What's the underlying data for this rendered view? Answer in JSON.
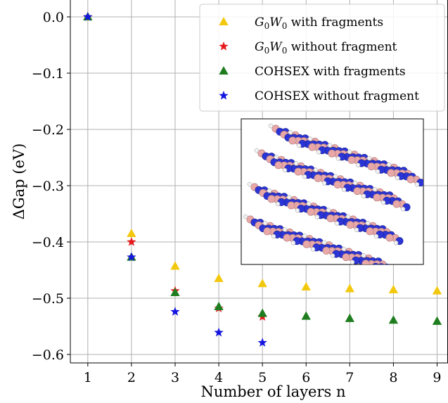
{
  "chart_data": {
    "type": "scatter",
    "xlabel": "Number of layers n",
    "ylabel": "ΔGap (eV)",
    "xlim": [
      0.6,
      9.25
    ],
    "ylim": [
      -0.615,
      0.03
    ],
    "x_ticks": [
      1,
      2,
      3,
      4,
      5,
      6,
      7,
      8,
      9
    ],
    "x_tick_labels": [
      "1",
      "2",
      "3",
      "4",
      "5",
      "6",
      "7",
      "8",
      "9"
    ],
    "y_ticks": [
      0.0,
      -0.1,
      -0.2,
      -0.3,
      -0.4,
      -0.5,
      -0.6
    ],
    "y_tick_labels": [
      "0.0",
      "−0.1",
      "−0.2",
      "−0.3",
      "−0.4",
      "−0.5",
      "−0.6"
    ],
    "grid": true,
    "legend_position": "top-right",
    "series": [
      {
        "name": "G0W0 with fragments",
        "name_parts": {
          "base": "G",
          "sub1": "0",
          "mid": "W",
          "sub2": "0",
          "rest": " with fragments"
        },
        "color": "#f2c80f",
        "marker": "triangle",
        "x": [
          1,
          2,
          3,
          4,
          5,
          6,
          7,
          8,
          9
        ],
        "y": [
          0.0,
          -0.385,
          -0.443,
          -0.465,
          -0.474,
          -0.48,
          -0.483,
          -0.485,
          -0.487
        ]
      },
      {
        "name": "G0W0 without fragment",
        "name_parts": {
          "base": "G",
          "sub1": "0",
          "mid": "W",
          "sub2": "0",
          "rest": " without fragment"
        },
        "color": "#e41a1c",
        "marker": "star",
        "x": [
          1,
          2,
          3,
          4,
          5
        ],
        "y": [
          0.0,
          -0.4,
          -0.487,
          -0.518,
          -0.533
        ]
      },
      {
        "name": "COHSEX with fragments",
        "color": "#1e7d1e",
        "marker": "triangle",
        "x": [
          1,
          2,
          3,
          4,
          5,
          6,
          7,
          8,
          9
        ],
        "y": [
          0.0,
          -0.427,
          -0.49,
          -0.515,
          -0.527,
          -0.532,
          -0.536,
          -0.539,
          -0.541
        ]
      },
      {
        "name": "COHSEX without fragment",
        "color": "#1515e0",
        "marker": "star",
        "x": [
          1,
          2,
          3,
          4,
          5
        ],
        "y": [
          0.0,
          -0.427,
          -0.524,
          -0.561,
          -0.579
        ]
      }
    ]
  },
  "inset": {
    "image_type": "stacked-layer-molecule-illustration",
    "atom_colors": {
      "boron": "#e8a8a8",
      "nitrogen": "#2b35d6",
      "hydrogen": "#f2f2f2"
    }
  }
}
